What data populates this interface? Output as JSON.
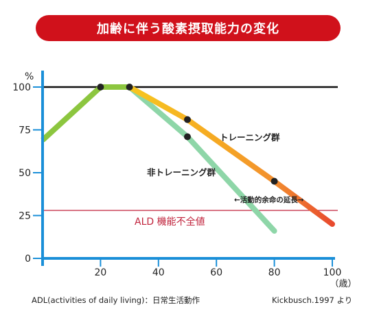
{
  "header": {
    "title": "加齢に伴う酸素摂取能力の変化"
  },
  "chart_data": {
    "type": "line",
    "ylabel": "%",
    "x_unit": "（歳）",
    "xlim": [
      0,
      100
    ],
    "ylim": [
      0,
      100
    ],
    "x_ticks": [
      20,
      40,
      60,
      80,
      100
    ],
    "y_ticks": [
      0,
      25,
      50,
      75,
      100
    ],
    "reference_line": {
      "value": 100,
      "color": "#111111"
    },
    "threshold": {
      "label": "ALD 機能不全値",
      "value": 28,
      "color": "#c0223b"
    },
    "shared_segment": {
      "points": [
        [
          0,
          69
        ],
        [
          20,
          100
        ],
        [
          30,
          100
        ]
      ],
      "color": "#8cc63f"
    },
    "series": [
      {
        "name": "トレーニング群",
        "points": [
          [
            30,
            100
          ],
          [
            50,
            81
          ],
          [
            80,
            45
          ],
          [
            100,
            20
          ]
        ],
        "markers": [
          [
            20,
            100
          ],
          [
            30,
            100
          ],
          [
            50,
            81
          ],
          [
            80,
            45
          ]
        ],
        "colors": [
          "#f7c520",
          "#f28f2f",
          "#e84a2e"
        ]
      },
      {
        "name": "非トレーニング群",
        "points": [
          [
            30,
            100
          ],
          [
            50,
            71
          ],
          [
            80,
            16
          ]
        ],
        "markers": [
          [
            50,
            71
          ]
        ],
        "colors": [
          "#8ed6a8"
        ]
      }
    ],
    "annotations": [
      {
        "text": "←活動的余命の延長→",
        "x": 69,
        "y": 34
      }
    ]
  },
  "footer": {
    "left": "ADL(activities of daily living)：日常生活動作",
    "right": "Kickbusch.1997 より"
  },
  "colors": {
    "banner": "#d0111b",
    "axis": "#1a8fd8",
    "marker": "#222222"
  }
}
